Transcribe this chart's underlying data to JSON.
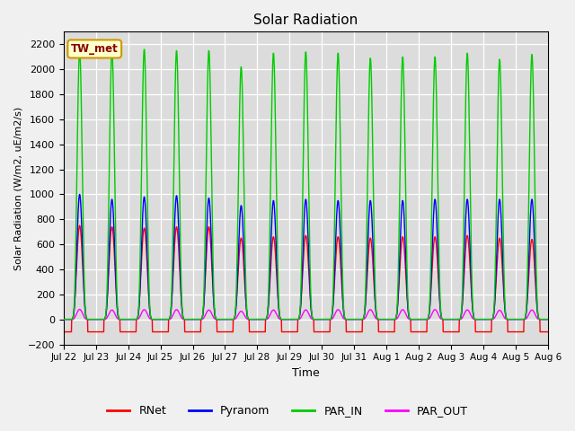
{
  "title": "Solar Radiation",
  "ylabel": "Solar Radiation (W/m2, uE/m2/s)",
  "xlabel": "Time",
  "ylim": [
    -200,
    2300
  ],
  "yticks": [
    -200,
    0,
    200,
    400,
    600,
    800,
    1000,
    1200,
    1400,
    1600,
    1800,
    2000,
    2200
  ],
  "num_days": 15,
  "colors": {
    "RNet": "#FF0000",
    "Pyranom": "#0000FF",
    "PAR_IN": "#00CC00",
    "PAR_OUT": "#FF00FF"
  },
  "legend_labels": [
    "RNet",
    "Pyranom",
    "PAR_IN",
    "PAR_OUT"
  ],
  "site_label": "TW_met",
  "plot_bg_color": "#DCDCDC",
  "fig_bg_color": "#F0F0F0",
  "tick_labels": [
    "Jul 22",
    "Jul 23",
    "Jul 24",
    "Jul 25",
    "Jul 26",
    "Jul 27",
    "Jul 28",
    "Jul 29",
    "Jul 30",
    "Jul 31",
    "Aug 1",
    "Aug 2",
    "Aug 3",
    "Aug 4",
    "Aug 5",
    "Aug 6"
  ],
  "peaks_rnet": [
    750,
    740,
    730,
    740,
    740,
    650,
    660,
    670,
    660,
    650,
    660,
    660,
    670,
    650,
    640
  ],
  "peaks_pyranom": [
    1000,
    960,
    980,
    990,
    970,
    910,
    950,
    960,
    950,
    950,
    950,
    960,
    960,
    960,
    960
  ],
  "peaks_par_in": [
    2150,
    2150,
    2160,
    2150,
    2150,
    2020,
    2130,
    2140,
    2130,
    2090,
    2100,
    2100,
    2130,
    2080,
    2120
  ],
  "peaks_par_out": [
    80,
    75,
    78,
    78,
    75,
    65,
    75,
    76,
    78,
    78,
    78,
    78,
    76,
    73,
    75
  ],
  "night_rnet": -100,
  "night_par_out": 0,
  "day_start": 0.25,
  "day_end": 0.75,
  "pts_per_day": 144
}
